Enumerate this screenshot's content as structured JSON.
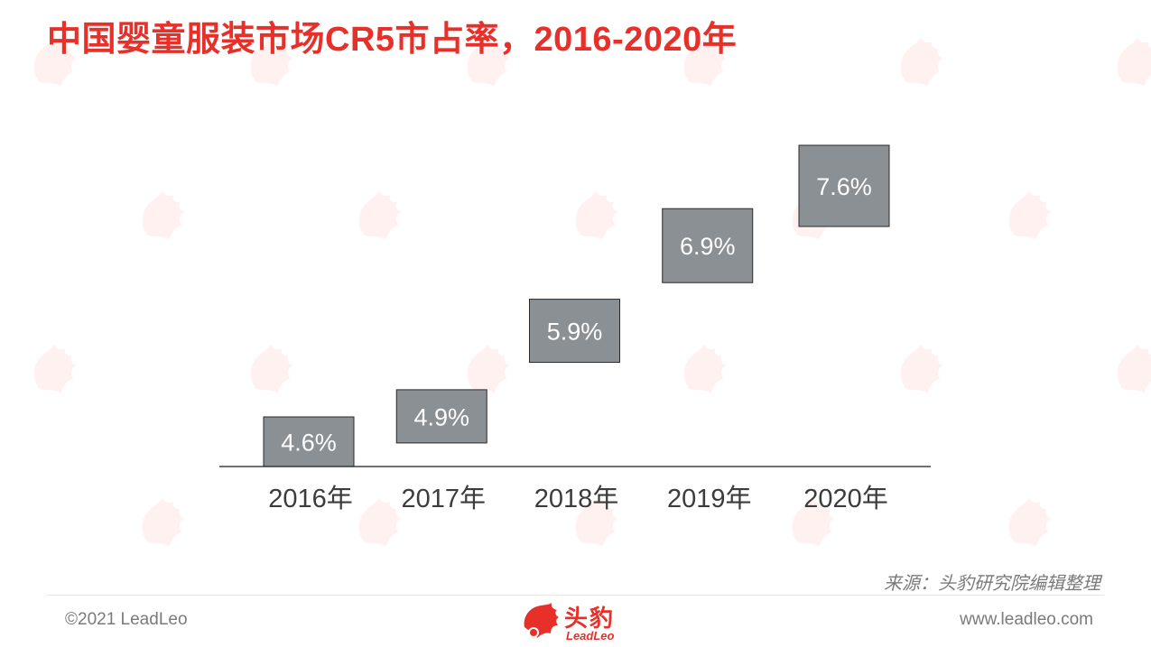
{
  "title": "中国婴童服装市场CR5市占率，2016-2020年",
  "chart_data": {
    "type": "bar",
    "style": "floating-step",
    "categories": [
      "2016年",
      "2017年",
      "2018年",
      "2019年",
      "2020年"
    ],
    "values": [
      4.6,
      4.9,
      5.9,
      6.9,
      7.6
    ],
    "value_labels": [
      "4.6%",
      "4.9%",
      "5.9%",
      "6.9%",
      "7.6%"
    ],
    "title": "中国婴童服装市场CR5市占率，2016-2020年",
    "xlabel": "",
    "ylabel": "",
    "grid": false,
    "bar_color": "#8a9094"
  },
  "footer": {
    "source": "来源：头豹研究院编辑整理",
    "copyright": "©2021 LeadLeo",
    "website": "www.leadleo.com"
  },
  "logo": {
    "cn": "头豹",
    "en": "LeadLeo",
    "icon": "leopard-logo-icon"
  },
  "colors": {
    "accent": "#e8302a",
    "bar": "#8a9094",
    "text": "#3c3c3c"
  }
}
